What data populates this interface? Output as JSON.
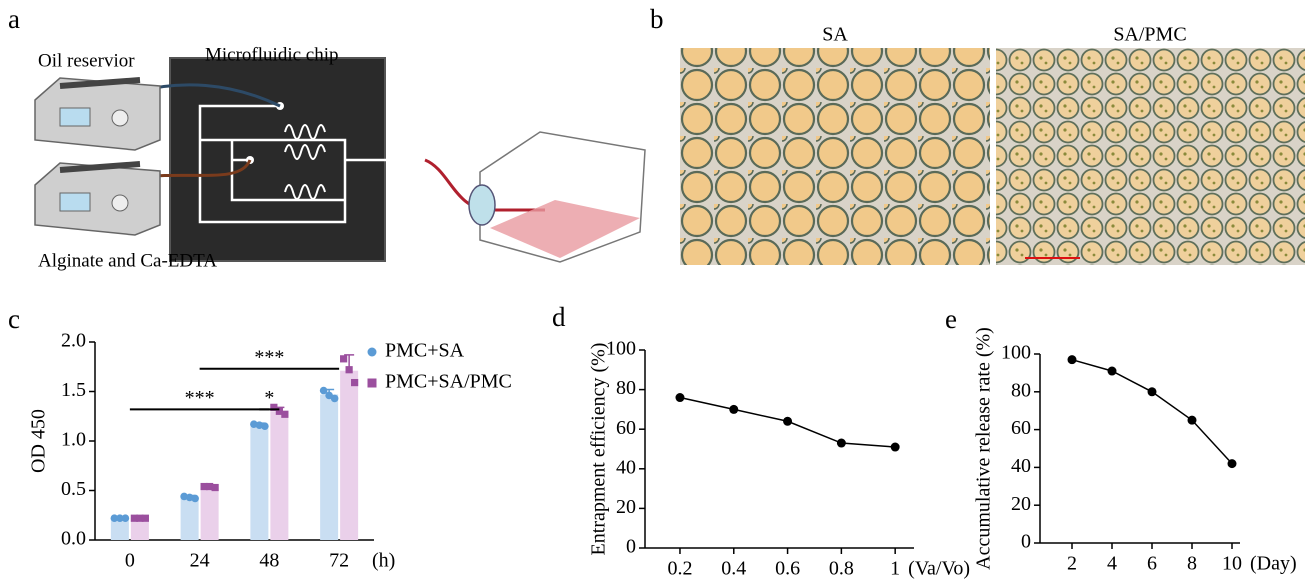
{
  "figure": {
    "panels": [
      "a",
      "b",
      "c",
      "d",
      "e"
    ],
    "a": {
      "labels": [
        "Oil reservior",
        "Microfluidic chip",
        "Alginate and Ca-EDTA"
      ]
    },
    "b": {
      "labels": [
        "SA",
        "SA/PMC"
      ]
    }
  },
  "chart_data": [
    {
      "type": "bar",
      "ylabel": "OD 450",
      "xlabel": "(h)",
      "categories": [
        "0",
        "24",
        "48",
        "72"
      ],
      "series": [
        {
          "name": "PMC+SA",
          "color": "#5b9bd5",
          "bar_color": "#c9def2",
          "marker": "circle",
          "values": [
            0.22,
            0.43,
            1.16,
            1.47
          ],
          "errors": [
            0.01,
            0.02,
            0.02,
            0.05
          ],
          "points": [
            [
              0.22,
              0.22,
              0.22
            ],
            [
              0.44,
              0.43,
              0.42
            ],
            [
              1.17,
              1.16,
              1.15
            ],
            [
              1.51,
              1.46,
              1.43
            ]
          ]
        },
        {
          "name": "PMC+SA/PMC",
          "color": "#9b4f9e",
          "bar_color": "#ead0ea",
          "marker": "square",
          "values": [
            0.22,
            0.53,
            1.3,
            1.71
          ],
          "errors": [
            0.01,
            0.01,
            0.04,
            0.16
          ],
          "points": [
            [
              0.22,
              0.22,
              0.22
            ],
            [
              0.54,
              0.54,
              0.53
            ],
            [
              1.34,
              1.3,
              1.27
            ],
            [
              1.83,
              1.72,
              1.59
            ]
          ]
        }
      ],
      "annotations": [
        {
          "text": "***",
          "from": 1,
          "to": 3,
          "y": 1.73
        },
        {
          "text": "***",
          "from": 0,
          "to": 2,
          "y": 1.32
        },
        {
          "text": "*",
          "from": 2,
          "to": 2,
          "y": 1.32
        }
      ],
      "ylim": [
        0,
        2
      ],
      "yticks": [
        {
          "value": 0,
          "label": "0.0"
        },
        0.5,
        {
          "value": 1,
          "label": "1.0"
        },
        1.5,
        {
          "value": 2,
          "label": "2.0"
        }
      ],
      "legend": "right"
    },
    {
      "type": "line",
      "ylabel": "Entrapment efficiency (%)",
      "xlabel": "(Va/Vo)",
      "x": [
        0.2,
        0.4,
        0.6,
        0.8,
        1
      ],
      "values": [
        76,
        70,
        64,
        53,
        51
      ],
      "color": "#000000",
      "xlim": [
        0.07,
        1.07
      ],
      "xticks": [
        0.2,
        0.4,
        0.6,
        0.8,
        1
      ],
      "ylim": [
        0,
        100
      ],
      "yticks": [
        0,
        20,
        40,
        60,
        80,
        100
      ]
    },
    {
      "type": "line",
      "ylabel": "Accumulative release rate (%)",
      "xlabel": "(Day)",
      "x": [
        2,
        4,
        6,
        8,
        10
      ],
      "values": [
        97,
        91,
        80,
        65,
        42
      ],
      "color": "#000000",
      "xlim": [
        0.4,
        10.4
      ],
      "xticks": [
        2,
        4,
        6,
        8,
        10
      ],
      "ylim": [
        0,
        100
      ],
      "yticks": [
        0,
        20,
        40,
        60,
        80,
        100
      ]
    }
  ]
}
